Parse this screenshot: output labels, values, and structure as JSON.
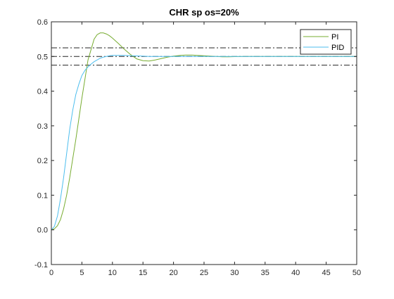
{
  "colors": {
    "background": "#ffffff",
    "axes": "#262626",
    "ref_line": "#262626",
    "pi": "#77ac30",
    "pid": "#4dbeee"
  },
  "chart_data": {
    "type": "line",
    "title": "CHR sp os=20%",
    "xlabel": "",
    "ylabel": "",
    "xlim": [
      0,
      50
    ],
    "ylim": [
      -0.1,
      0.6
    ],
    "x_ticks": [
      0,
      5,
      10,
      15,
      20,
      25,
      30,
      35,
      40,
      45,
      50
    ],
    "y_ticks": [
      -0.1,
      0,
      0.1,
      0.2,
      0.3,
      0.4,
      0.5,
      0.6
    ],
    "grid": false,
    "legend_position": "top-right",
    "reference_lines": [
      0.6,
      0.525,
      0.5,
      0.475
    ],
    "series": [
      {
        "name": "PI",
        "color": "#77ac30",
        "x": [
          0,
          0.5,
          1,
          1.5,
          2,
          2.5,
          3,
          3.5,
          4,
          4.5,
          5,
          5.5,
          6,
          6.5,
          7,
          7.5,
          8,
          8.5,
          9,
          9.5,
          10,
          11,
          12,
          13,
          14,
          15,
          16,
          17,
          18,
          19,
          20,
          21,
          22,
          23,
          24,
          25,
          26,
          27,
          28,
          29,
          30,
          32,
          34,
          36,
          38,
          40,
          42,
          44,
          46,
          48,
          50
        ],
        "y": [
          0,
          0.003,
          0.012,
          0.03,
          0.06,
          0.1,
          0.15,
          0.205,
          0.26,
          0.32,
          0.38,
          0.435,
          0.49,
          0.52,
          0.55,
          0.563,
          0.568,
          0.568,
          0.565,
          0.56,
          0.553,
          0.537,
          0.52,
          0.505,
          0.493,
          0.488,
          0.487,
          0.49,
          0.494,
          0.498,
          0.501,
          0.503,
          0.504,
          0.504,
          0.503,
          0.502,
          0.501,
          0.5,
          0.499,
          0.499,
          0.4995,
          0.5,
          0.5,
          0.5,
          0.5,
          0.5,
          0.5,
          0.5,
          0.5,
          0.5,
          0.5
        ]
      },
      {
        "name": "PID",
        "color": "#4dbeee",
        "x": [
          0,
          0.5,
          1,
          1.5,
          2,
          2.5,
          3,
          3.5,
          4,
          4.5,
          5,
          5.5,
          6,
          6.5,
          7,
          7.5,
          8,
          8.5,
          9,
          9.5,
          10,
          11,
          12,
          13,
          14,
          15,
          16,
          18,
          20,
          22,
          24,
          26,
          28,
          30,
          35,
          40,
          45,
          50
        ],
        "y": [
          0,
          0.01,
          0.04,
          0.09,
          0.15,
          0.22,
          0.29,
          0.345,
          0.39,
          0.42,
          0.445,
          0.46,
          0.47,
          0.478,
          0.485,
          0.49,
          0.495,
          0.498,
          0.5,
          0.502,
          0.503,
          0.503,
          0.503,
          0.502,
          0.5015,
          0.501,
          0.5,
          0.5,
          0.5,
          0.5,
          0.5,
          0.5,
          0.5,
          0.5,
          0.5,
          0.5,
          0.5,
          0.5
        ]
      }
    ]
  }
}
